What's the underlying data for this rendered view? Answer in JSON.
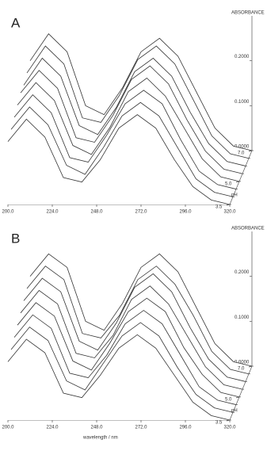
{
  "chart_data": [
    {
      "type": "waterfall",
      "label": "A",
      "z_label": "ABSORBANCE",
      "depth_label": "pH",
      "x": [
        200,
        210,
        220,
        230,
        240,
        250,
        260,
        270,
        280,
        290,
        300,
        310,
        320
      ],
      "xlim": [
        200,
        320
      ],
      "xticks": [
        {
          "value": 200,
          "label": "200.0"
        },
        {
          "value": 224,
          "label": "224.0"
        },
        {
          "value": 248,
          "label": "248.0"
        },
        {
          "value": 272,
          "label": "272.0"
        },
        {
          "value": 296,
          "label": "296.0"
        },
        {
          "value": 320,
          "label": "320.0"
        }
      ],
      "ylim": [
        0,
        0.3
      ],
      "yticks": [
        {
          "value": 0,
          "label": "0.0000"
        },
        {
          "value": 0.1,
          "label": "0.1000"
        },
        {
          "value": 0.2,
          "label": "0.2000"
        }
      ],
      "zlim": [
        3.5,
        7.0
      ],
      "zticks": [
        3.5,
        {
          "value": 5,
          "label": "5.0"
        },
        {
          "value": 7,
          "label": "7.0"
        }
      ],
      "series": [
        {
          "z": 3.5,
          "color": "#333333",
          "values": [
            0.14,
            0.19,
            0.15,
            0.06,
            0.05,
            0.1,
            0.17,
            0.2,
            0.17,
            0.1,
            0.04,
            0.01,
            0.0
          ]
        },
        {
          "z": 4.0,
          "color": "#333333",
          "values": [
            0.15,
            0.2,
            0.16,
            0.07,
            0.05,
            0.11,
            0.18,
            0.21,
            0.18,
            0.11,
            0.04,
            0.01,
            0.0
          ]
        },
        {
          "z": 4.5,
          "color": "#333333",
          "values": [
            0.16,
            0.21,
            0.17,
            0.07,
            0.06,
            0.12,
            0.19,
            0.22,
            0.19,
            0.11,
            0.04,
            0.01,
            0.0
          ]
        },
        {
          "z": 5.0,
          "color": "#333333",
          "values": [
            0.17,
            0.22,
            0.18,
            0.08,
            0.06,
            0.12,
            0.2,
            0.23,
            0.19,
            0.12,
            0.05,
            0.01,
            0.0
          ]
        },
        {
          "z": 5.5,
          "color": "#333333",
          "values": [
            0.18,
            0.23,
            0.19,
            0.08,
            0.07,
            0.13,
            0.21,
            0.24,
            0.2,
            0.12,
            0.05,
            0.01,
            0.0
          ]
        },
        {
          "z": 6.0,
          "color": "#333333",
          "values": [
            0.18,
            0.24,
            0.2,
            0.09,
            0.07,
            0.13,
            0.21,
            0.24,
            0.2,
            0.12,
            0.05,
            0.01,
            0.0
          ]
        },
        {
          "z": 6.5,
          "color": "#333333",
          "values": [
            0.19,
            0.25,
            0.21,
            0.09,
            0.08,
            0.14,
            0.22,
            0.25,
            0.21,
            0.13,
            0.05,
            0.01,
            0.0
          ]
        },
        {
          "z": 7.0,
          "color": "#333333",
          "values": [
            0.2,
            0.26,
            0.22,
            0.1,
            0.08,
            0.14,
            0.22,
            0.25,
            0.21,
            0.13,
            0.05,
            0.01,
            0.0
          ]
        }
      ]
    },
    {
      "type": "waterfall",
      "label": "B",
      "z_label": "ABSORBANCE",
      "depth_label": "pH",
      "x_label": "wavelength / nm",
      "x": [
        200,
        210,
        220,
        230,
        240,
        250,
        260,
        270,
        280,
        290,
        300,
        310,
        320
      ],
      "xlim": [
        200,
        320
      ],
      "xticks": [
        {
          "value": 200,
          "label": "200.0"
        },
        {
          "value": 224,
          "label": "224.0"
        },
        {
          "value": 248,
          "label": "248.0"
        },
        {
          "value": 272,
          "label": "272.0"
        },
        {
          "value": 296,
          "label": "296.0"
        },
        {
          "value": 320,
          "label": "320.0"
        }
      ],
      "ylim": [
        0,
        0.3
      ],
      "yticks": [
        {
          "value": 0,
          "label": "0.0000"
        },
        {
          "value": 0.1,
          "label": "0.1000"
        },
        {
          "value": 0.2,
          "label": "0.2000"
        }
      ],
      "zlim": [
        3.5,
        7.0
      ],
      "zticks": [
        3.5,
        {
          "value": 5,
          "label": "5.0"
        },
        {
          "value": 7,
          "label": "7.0"
        }
      ],
      "series": [
        {
          "z": 3.5,
          "color": "#333333",
          "values": [
            0.13,
            0.18,
            0.15,
            0.06,
            0.05,
            0.1,
            0.16,
            0.19,
            0.16,
            0.1,
            0.04,
            0.01,
            0.0
          ]
        },
        {
          "z": 4.0,
          "color": "#333333",
          "values": [
            0.14,
            0.19,
            0.16,
            0.07,
            0.05,
            0.11,
            0.17,
            0.2,
            0.17,
            0.1,
            0.04,
            0.01,
            0.0
          ]
        },
        {
          "z": 4.5,
          "color": "#333333",
          "values": [
            0.15,
            0.2,
            0.17,
            0.07,
            0.06,
            0.11,
            0.18,
            0.21,
            0.18,
            0.11,
            0.04,
            0.01,
            0.0
          ]
        },
        {
          "z": 5.0,
          "color": "#333333",
          "values": [
            0.16,
            0.21,
            0.18,
            0.08,
            0.06,
            0.12,
            0.19,
            0.22,
            0.19,
            0.11,
            0.05,
            0.01,
            0.0
          ]
        },
        {
          "z": 5.5,
          "color": "#333333",
          "values": [
            0.17,
            0.22,
            0.19,
            0.08,
            0.07,
            0.12,
            0.2,
            0.23,
            0.19,
            0.12,
            0.05,
            0.01,
            0.0
          ]
        },
        {
          "z": 6.0,
          "color": "#333333",
          "values": [
            0.18,
            0.23,
            0.2,
            0.09,
            0.07,
            0.13,
            0.21,
            0.24,
            0.2,
            0.12,
            0.05,
            0.01,
            0.0
          ]
        },
        {
          "z": 6.5,
          "color": "#333333",
          "values": [
            0.19,
            0.24,
            0.21,
            0.09,
            0.08,
            0.13,
            0.21,
            0.24,
            0.2,
            0.13,
            0.05,
            0.01,
            0.0
          ]
        },
        {
          "z": 7.0,
          "color": "#333333",
          "values": [
            0.2,
            0.25,
            0.22,
            0.1,
            0.08,
            0.14,
            0.22,
            0.25,
            0.21,
            0.13,
            0.05,
            0.01,
            0.0
          ]
        }
      ]
    }
  ]
}
